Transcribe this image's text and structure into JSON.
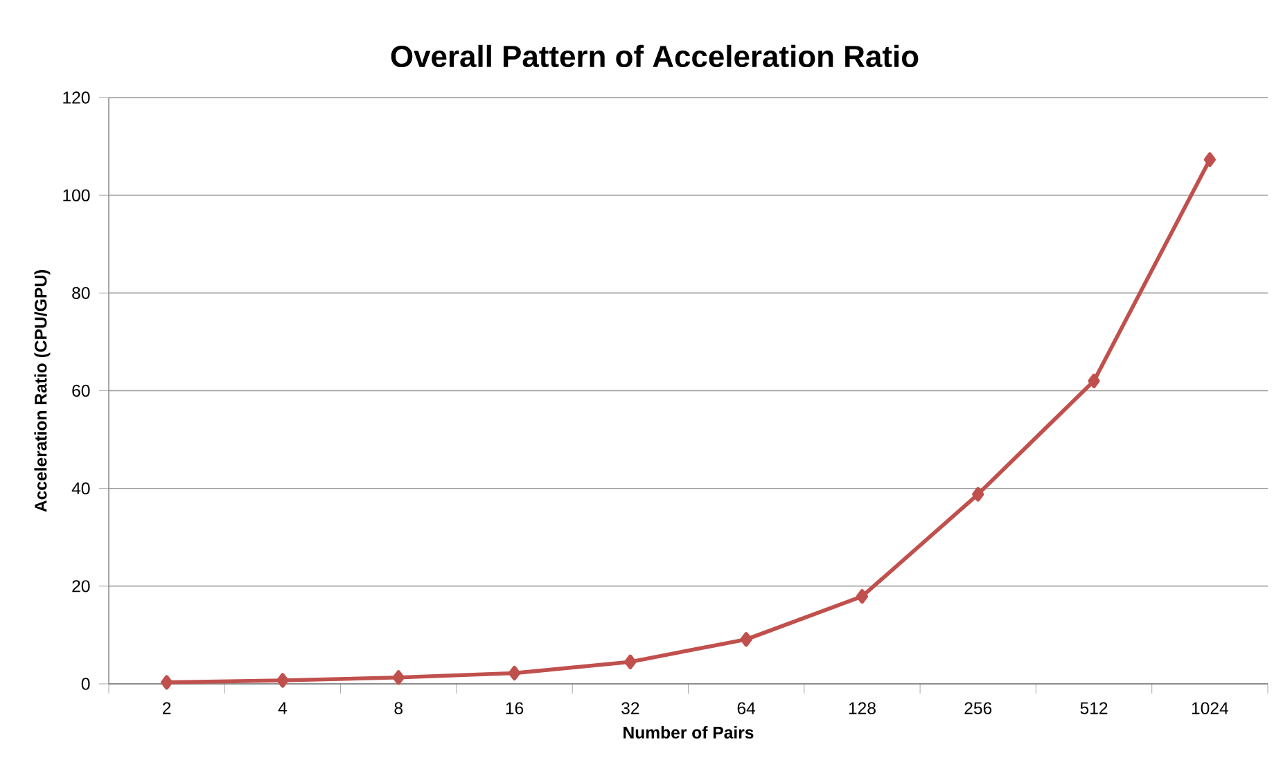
{
  "chart_data": {
    "type": "line",
    "title": "Overall Pattern of Acceleration Ratio",
    "xlabel": "Number of Pairs",
    "ylabel": "Acceleration Ratio (CPU/GPU)",
    "categories": [
      "2",
      "4",
      "8",
      "16",
      "32",
      "64",
      "128",
      "256",
      "512",
      "1024"
    ],
    "series": [
      {
        "color": "#c0504d",
        "values": [
          0.3,
          0.7,
          1.3,
          2.2,
          4.5,
          9.1,
          17.9,
          38.8,
          62,
          107.3
        ]
      }
    ],
    "ylim": [
      0,
      120
    ],
    "yticks": [
      0,
      20,
      40,
      60,
      80,
      100,
      120
    ],
    "grid": "y",
    "marker": "diamond",
    "line_style": "solid"
  }
}
